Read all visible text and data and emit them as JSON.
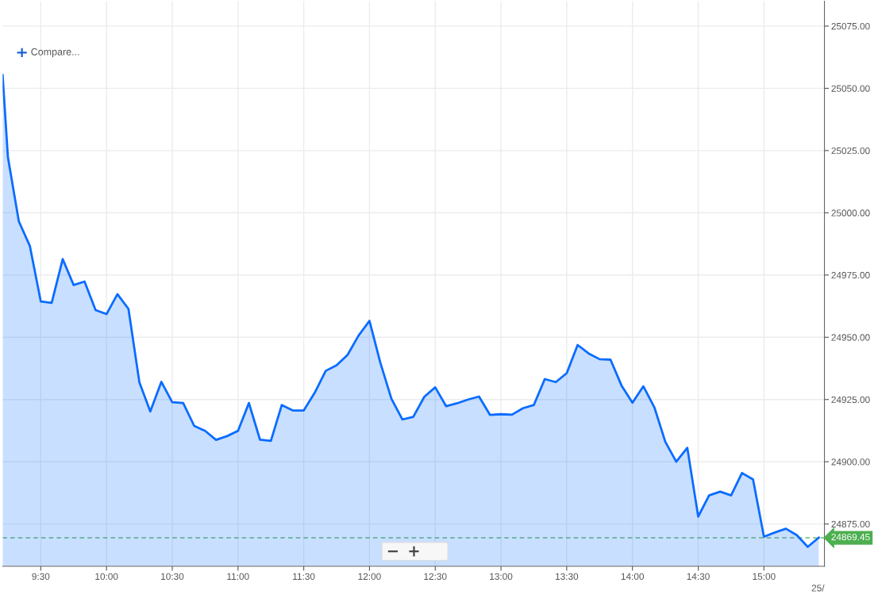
{
  "chart_data": {
    "type": "area",
    "annotations": [
      "Compare...",
      "25/"
    ],
    "x": [
      9.21,
      9.25,
      9.333,
      9.417,
      9.5,
      9.583,
      9.667,
      9.75,
      9.833,
      9.917,
      10,
      10.083,
      10.167,
      10.25,
      10.333,
      10.417,
      10.5,
      10.583,
      10.667,
      10.75,
      10.833,
      10.917,
      11,
      11.083,
      11.167,
      11.25,
      11.333,
      11.417,
      11.5,
      11.583,
      11.667,
      11.75,
      11.833,
      11.917,
      12,
      12.083,
      12.167,
      12.25,
      12.333,
      12.417,
      12.5,
      12.583,
      12.667,
      12.75,
      12.833,
      12.917,
      13,
      13.083,
      13.167,
      13.25,
      13.333,
      13.417,
      13.5,
      13.583,
      13.667,
      13.75,
      13.833,
      13.917,
      14,
      14.083,
      14.167,
      14.25,
      14.333,
      14.417,
      14.5,
      14.583,
      14.667,
      14.75,
      14.833,
      14.917,
      15,
      15.083,
      15.167,
      15.25,
      15.333,
      15.417
    ],
    "series": [
      {
        "color": "#0a6cff",
        "values": [
          25055.3,
          25022.4,
          24996.6,
          24986.7,
          24964.4,
          24963.8,
          24981.4,
          24971,
          24972.4,
          24960.9,
          24959.3,
          24967.3,
          24961.4,
          24931.9,
          24920.2,
          24932.1,
          24923.9,
          24923.6,
          24914.4,
          24912.4,
          24908.8,
          24910.3,
          24912.4,
          24923.6,
          24908.9,
          24908.4,
          24922.8,
          24920.6,
          24920.6,
          24927.7,
          24936.5,
          24938.8,
          24942.9,
          24950.7,
          24956.6,
          24939.7,
          24925.3,
          24917,
          24918,
          24926.1,
          24929.9,
          24922.3,
          24923.5,
          24925,
          24926.2,
          24918.8,
          24919.1,
          24918.9,
          24921.5,
          24922.8,
          24933.2,
          24932,
          24935.6,
          24946.9,
          24943.5,
          24941.2,
          24941,
          24930.6,
          24923.7,
          24930.3,
          24921.8,
          24908,
          24900,
          24905.6,
          24878,
          24886.5,
          24888,
          24886.5,
          24895.5,
          24892.9,
          24869.9,
          24871.6,
          24873.1,
          24870.5,
          24865.8,
          24869.5
        ]
      }
    ],
    "xlim": [
      9.21,
      15.46
    ],
    "ylim": [
      24858,
      25085
    ],
    "xticks": [
      {
        "value": 9.5,
        "label": "9:30"
      },
      {
        "value": 10,
        "label": "10:00"
      },
      {
        "value": 10.5,
        "label": "10:30"
      },
      {
        "value": 11,
        "label": "11:00"
      },
      {
        "value": 11.5,
        "label": "11:30"
      },
      {
        "value": 12,
        "label": "12:00"
      },
      {
        "value": 12.5,
        "label": "12:30"
      },
      {
        "value": 13,
        "label": "13:00"
      },
      {
        "value": 13.5,
        "label": "13:30"
      },
      {
        "value": 14,
        "label": "14:00"
      },
      {
        "value": 14.5,
        "label": "14:30"
      },
      {
        "value": 15,
        "label": "15:00"
      }
    ],
    "yticks": [
      {
        "value": 24875,
        "label": "24875.00"
      },
      {
        "value": 24900,
        "label": "24900.00"
      },
      {
        "value": 24925,
        "label": "24925.00"
      },
      {
        "value": 24950,
        "label": "24950.00"
      },
      {
        "value": 24975,
        "label": "24975.00"
      },
      {
        "value": 25000,
        "label": "25000.00"
      },
      {
        "value": 25025,
        "label": "25025.00"
      },
      {
        "value": 25050,
        "label": "25050.00"
      },
      {
        "value": 25075,
        "label": "25075.00"
      }
    ],
    "ref_lines": [
      {
        "axis": "y",
        "value": 24869.45,
        "label": "24869.45",
        "color": "#4caf50",
        "line_style": "dashed"
      }
    ],
    "grid": true,
    "marker": "none",
    "line_style": "solid"
  }
}
